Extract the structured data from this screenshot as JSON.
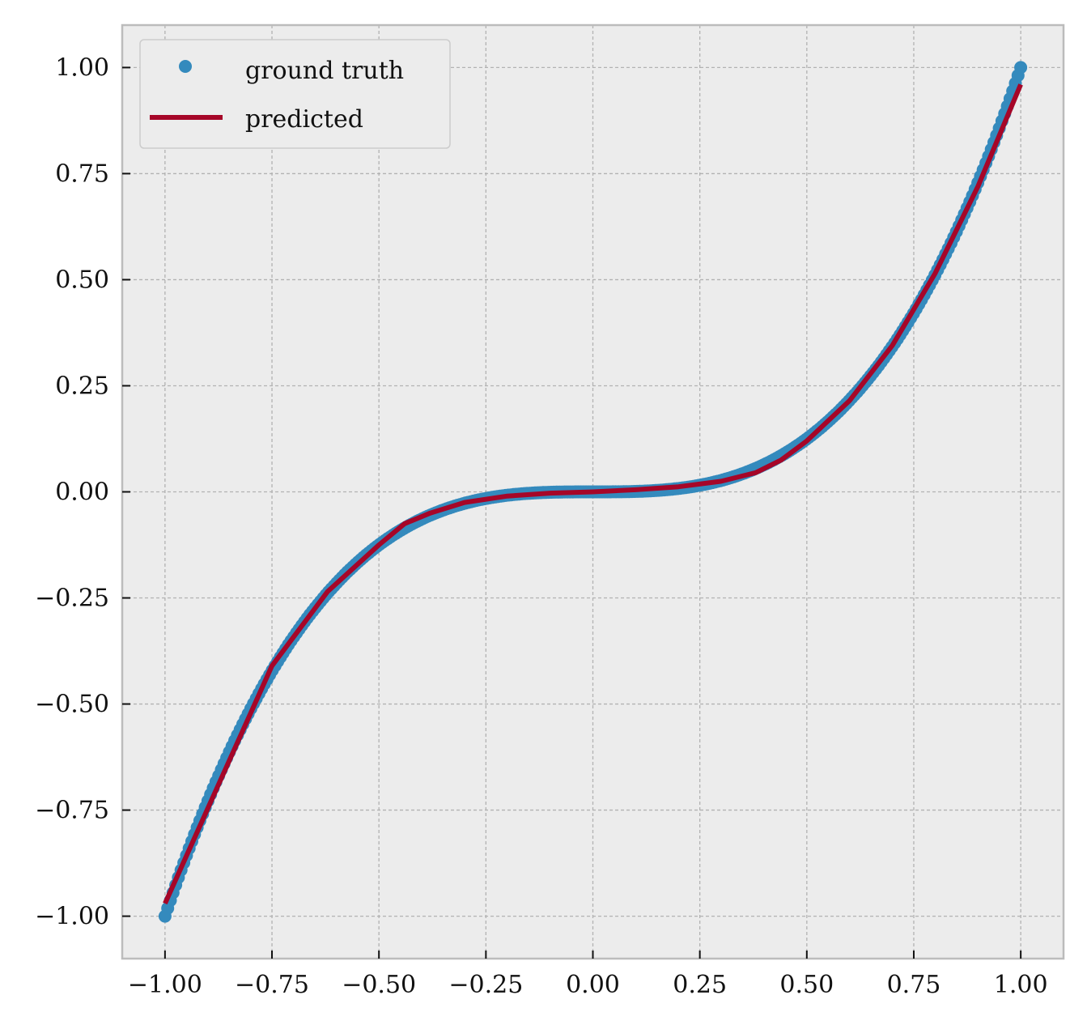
{
  "chart_data": {
    "type": "scatter",
    "title": "",
    "xlabel": "",
    "ylabel": "",
    "xlim": [
      -1.1,
      1.1
    ],
    "ylim": [
      -1.1,
      1.1
    ],
    "grid": true,
    "legend_position": "top-left",
    "x_ticks": [
      -1.0,
      -0.75,
      -0.5,
      -0.25,
      0.0,
      0.25,
      0.5,
      0.75,
      1.0
    ],
    "x_tick_labels": [
      "−1.00",
      "−0.75",
      "−0.50",
      "−0.25",
      "0.00",
      "0.25",
      "0.50",
      "0.75",
      "1.00"
    ],
    "y_ticks": [
      1.0,
      0.75,
      0.5,
      0.25,
      0.0,
      -0.25,
      -0.5,
      -0.75,
      -1.0
    ],
    "y_tick_labels": [
      "1.00",
      "0.75",
      "0.50",
      "0.25",
      "0.00",
      "−0.25",
      "−0.50",
      "−0.75",
      "−1.00"
    ],
    "series": [
      {
        "name": "ground truth",
        "kind": "scatter",
        "color": "#348abd",
        "function": "y = x^3",
        "x_range": [
          -1.0,
          1.0
        ]
      },
      {
        "name": "predicted",
        "kind": "line",
        "color": "#a60628",
        "x": [
          -1.0,
          -0.75,
          -0.62,
          -0.5,
          -0.44,
          -0.38,
          -0.3,
          -0.2,
          -0.1,
          0.0,
          0.1,
          0.2,
          0.3,
          0.38,
          0.44,
          0.5,
          0.6,
          0.7,
          0.8,
          0.9,
          1.0
        ],
        "y": [
          -0.97,
          -0.41,
          -0.235,
          -0.125,
          -0.075,
          -0.05,
          -0.025,
          -0.01,
          -0.003,
          0.0,
          0.005,
          0.012,
          0.025,
          0.045,
          0.075,
          0.12,
          0.215,
          0.345,
          0.515,
          0.72,
          0.96
        ]
      }
    ]
  }
}
